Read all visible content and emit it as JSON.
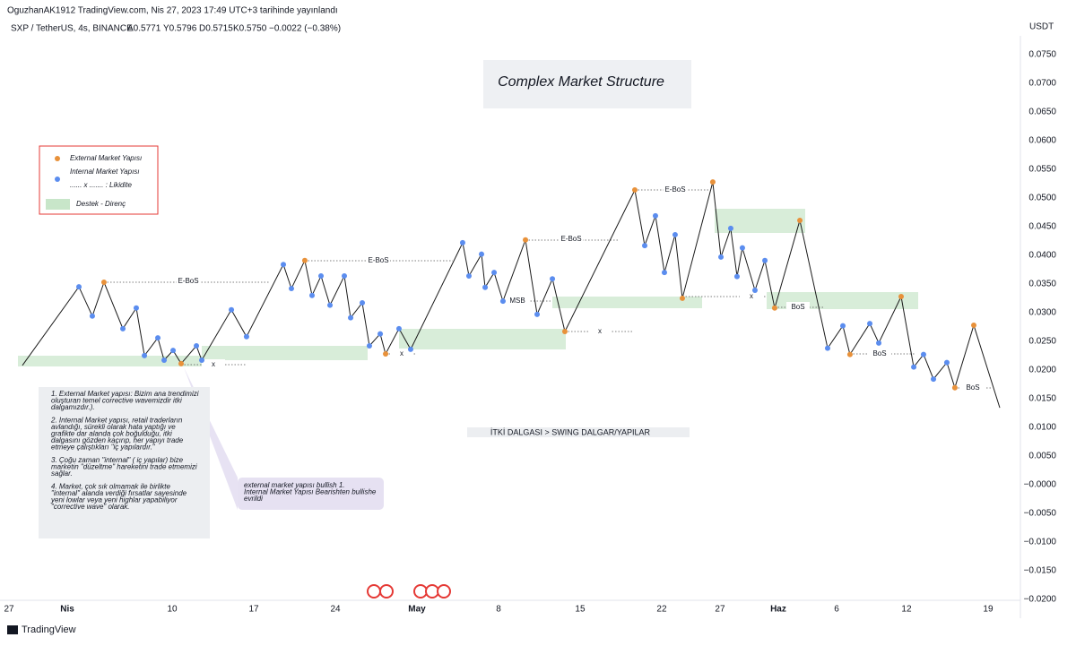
{
  "header": {
    "publisher": "OguzhanAK1912 TradingView.com, Nis 27, 2023 17:49 UTC+3 tarihinde yayınlandı",
    "symbol": "SXP / TetherUS, 4s, BINANCE",
    "ohlc": [
      "A0.5771",
      "Y0.5796",
      "D0.5715",
      "K0.5750"
    ],
    "change": "−0.0022 (−0.38%)"
  },
  "footer": {
    "brand": "TradingView"
  },
  "chart_data": {
    "type": "line",
    "title": "Complex Market Structure",
    "y_unit": "USDT",
    "color": "#1a1a1a",
    "x": [
      1.15,
      6.0,
      7.15,
      8.15,
      9.77,
      10.92,
      11.62,
      12.77,
      13.31,
      14.08,
      14.77,
      16.08,
      16.54,
      19.08,
      20.38,
      23.54,
      24.23,
      25.38,
      26.0,
      26.77,
      27.54,
      28.77,
      29.31,
      30.31,
      30.92,
      31.85,
      32.31,
      33.46,
      34.46,
      38.92,
      39.46,
      40.54,
      40.85,
      41.62,
      42.38,
      44.31,
      45.31,
      46.62,
      47.69,
      53.69,
      54.54,
      55.46,
      56.23,
      57.15,
      57.77,
      60.38,
      61.08,
      61.92,
      62.46,
      62.92,
      64.0,
      64.85,
      65.69,
      67.85,
      70.23,
      71.54,
      72.15,
      73.85,
      74.62,
      76.54,
      77.62,
      78.46,
      79.31,
      80.46,
      81.15,
      82.77,
      85.0
    ],
    "values": [
      0.0208,
      0.0345,
      0.0294,
      0.0353,
      0.0272,
      0.0308,
      0.0225,
      0.0256,
      0.0217,
      0.0234,
      0.0211,
      0.0242,
      0.0217,
      0.0305,
      0.0258,
      0.0384,
      0.0342,
      0.0391,
      0.033,
      0.0364,
      0.0313,
      0.0364,
      0.0291,
      0.0317,
      0.0242,
      0.0263,
      0.0228,
      0.0272,
      0.0236,
      0.0422,
      0.0364,
      0.0402,
      0.0344,
      0.037,
      0.032,
      0.0427,
      0.0297,
      0.0359,
      0.0267,
      0.0514,
      0.0417,
      0.0469,
      0.037,
      0.0436,
      0.0325,
      0.0528,
      0.0397,
      0.0447,
      0.0363,
      0.0413,
      0.0339,
      0.0391,
      0.0308,
      0.0461,
      0.0238,
      0.0277,
      0.0227,
      0.0281,
      0.0247,
      0.0328,
      0.0205,
      0.0227,
      0.0184,
      0.0213,
      0.0169,
      0.0278,
      0.0134
    ],
    "point_colors": [
      null,
      "#5b8def",
      "#5b8def",
      "#e8913a",
      "#5b8def",
      "#5b8def",
      "#5b8def",
      "#5b8def",
      "#5b8def",
      "#5b8def",
      "#e8913a",
      "#5b8def",
      "#5b8def",
      "#5b8def",
      "#5b8def",
      "#5b8def",
      "#5b8def",
      "#e8913a",
      "#5b8def",
      "#5b8def",
      "#5b8def",
      "#5b8def",
      "#5b8def",
      "#5b8def",
      "#5b8def",
      "#5b8def",
      "#e8913a",
      "#5b8def",
      "#5b8def",
      "#5b8def",
      "#5b8def",
      "#5b8def",
      "#5b8def",
      "#5b8def",
      "#5b8def",
      "#e8913a",
      "#5b8def",
      "#5b8def",
      "#e8913a",
      "#e8913a",
      "#5b8def",
      "#5b8def",
      "#5b8def",
      "#5b8def",
      "#e8913a",
      "#e8913a",
      "#5b8def",
      "#5b8def",
      "#5b8def",
      "#5b8def",
      "#5b8def",
      "#5b8def",
      "#e8913a",
      "#e8913a",
      "#5b8def",
      "#5b8def",
      "#e8913a",
      "#5b8def",
      "#5b8def",
      "#e8913a",
      "#5b8def",
      "#5b8def",
      "#5b8def",
      "#5b8def",
      "#e8913a",
      "#e8913a",
      null
    ],
    "xlim": [
      -0.77,
      86.54
    ],
    "xticks": [
      {
        "value": 0,
        "label": "27"
      },
      {
        "value": 5,
        "label": "Nis"
      },
      {
        "value": 14,
        "label": "10"
      },
      {
        "value": 21,
        "label": "17"
      },
      {
        "value": 28,
        "label": "24"
      },
      {
        "value": 35,
        "label": "May"
      },
      {
        "value": 42,
        "label": "8"
      },
      {
        "value": 49,
        "label": "15"
      },
      {
        "value": 56,
        "label": "22"
      },
      {
        "value": 61,
        "label": "27"
      },
      {
        "value": 66,
        "label": "Haz"
      },
      {
        "value": 71,
        "label": "6"
      },
      {
        "value": 77,
        "label": "12"
      },
      {
        "value": 84,
        "label": "19"
      }
    ],
    "ylim": [
      -0.0202,
      0.0783
    ],
    "yticks": [
      {
        "value": 0.075,
        "label": "0.0750"
      },
      {
        "value": 0.07,
        "label": "0.0700"
      },
      {
        "value": 0.065,
        "label": "0.0650"
      },
      {
        "value": 0.06,
        "label": "0.0600"
      },
      {
        "value": 0.055,
        "label": "0.0550"
      },
      {
        "value": 0.05,
        "label": "0.0500"
      },
      {
        "value": 0.045,
        "label": "0.0450"
      },
      {
        "value": 0.04,
        "label": "0.0400"
      },
      {
        "value": 0.035,
        "label": "0.0350"
      },
      {
        "value": 0.03,
        "label": "0.0300"
      },
      {
        "value": 0.025,
        "label": "0.0250"
      },
      {
        "value": 0.02,
        "label": "0.0200"
      },
      {
        "value": 0.015,
        "label": "0.0150"
      },
      {
        "value": 0.01,
        "label": "0.0100"
      },
      {
        "value": 0.005,
        "label": "0.0050"
      },
      {
        "value": 0,
        "label": "−0.0000"
      },
      {
        "value": -0.005,
        "label": "−0.0050"
      },
      {
        "value": -0.01,
        "label": "−0.0100"
      },
      {
        "value": -0.015,
        "label": "−0.0150"
      },
      {
        "value": -0.02,
        "label": "−0.0200"
      }
    ],
    "legend": [
      "External Market Yapısı",
      "Internal Market Yapısı",
      "...... x ....... : Likidite",
      "Destek - Direnç"
    ],
    "annotations": [
      "E-BoS",
      "E-BoS",
      "E-BoS",
      "E-BoS",
      "MSB",
      "BoS",
      "BoS",
      "BoS",
      "x",
      "x",
      "x",
      "x"
    ],
    "wave_note": "İTKİ DALGASI > SWING DALGAR/YAPILAR",
    "notes": [
      [
        "1. External Market yapısı: Bizim ana trendimizi",
        "oluşturan temel corrective wavemizdir  itki",
        "dalgamızdır.)."
      ],
      [
        "2. Internal Market yapısı, retail traderların",
        "avlandığı, sürekli olarak hata yaptığı ve",
        "grafikte dar alanda çok boğulduğu, itki",
        "dalgasını gözden kaçırıp, her yapıyı trade",
        "etmeye çalıştıkları \"iç yapılardır.\""
      ],
      [
        "3. Çoğu zaman \"internal\" ( iç yapılar) bize",
        "marketin \"düzeltme\" hareketini trade etmemizi",
        "sağlar."
      ],
      [
        "4. Market, çok sık olmamak ile birlikte",
        "\"internal\" alanda verdiği fırsatlar sayesinde",
        "yeni lowlar veya yeni highlar yapabiliyor",
        "\"corrective wave\" olarak."
      ]
    ],
    "callout": [
      "external market yapısı bullish 1.",
      "Internal Market Yapısı Bearishten bullishe",
      "evrildi"
    ]
  }
}
